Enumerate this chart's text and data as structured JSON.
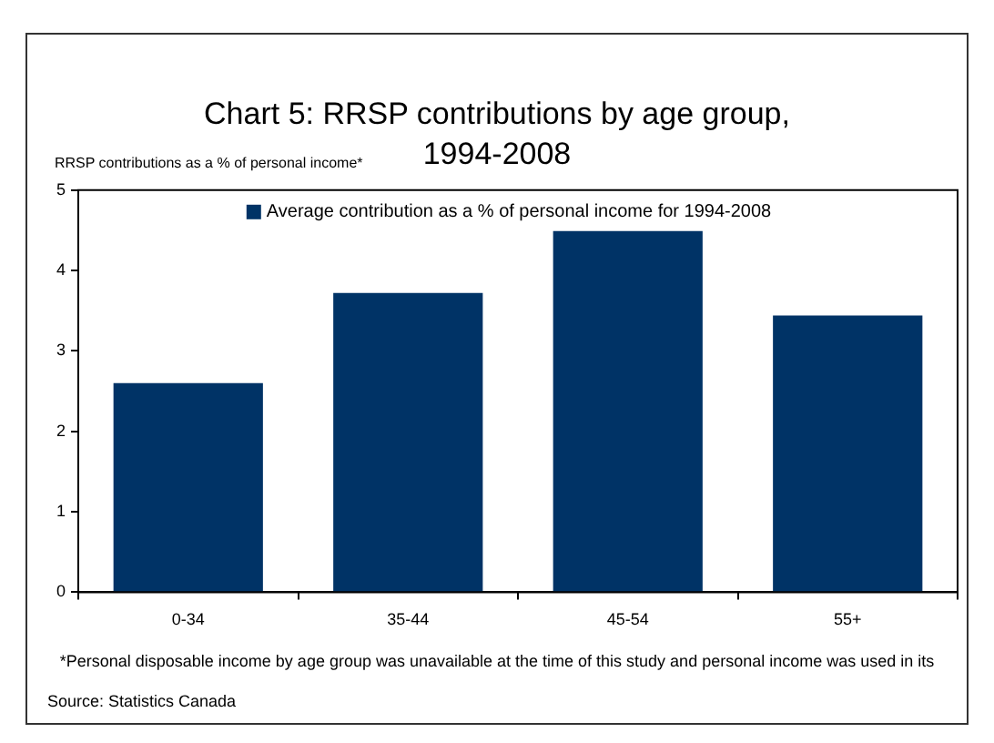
{
  "chart_data": {
    "type": "bar",
    "title": "Chart 5: RRSP contributions by age group, 1994-2008",
    "ylabel": "RRSP contributions as a % of personal income*",
    "categories": [
      "0-34",
      "35-44",
      "45-54",
      "55+"
    ],
    "series": [
      {
        "name": "Average contribution as a % of personal income for 1994-2008",
        "color": "#003366",
        "values": [
          2.6,
          3.72,
          4.49,
          3.44
        ]
      }
    ],
    "ylim": [
      0,
      5
    ],
    "yticks": [
      0,
      1,
      2,
      3,
      4,
      5
    ],
    "grid": false,
    "legend": "top",
    "annotations": [
      "*Personal disposable income by age group was unavailable at the time of this study and personal income was used in its",
      "Source: Statistics Canada"
    ]
  }
}
